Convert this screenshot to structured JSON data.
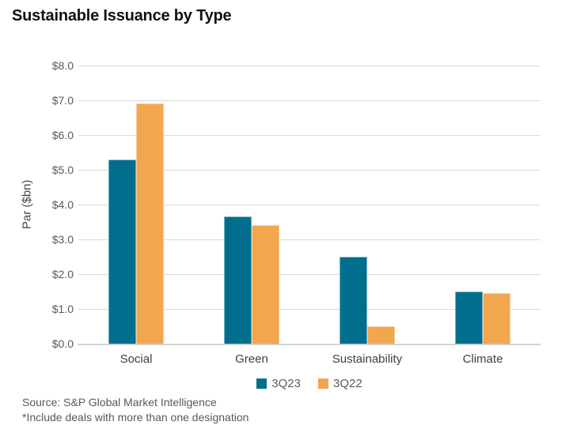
{
  "title": "Sustainable Issuance by Type",
  "chart_data": {
    "type": "bar",
    "categories": [
      "Social",
      "Green",
      "Sustainability",
      "Climate"
    ],
    "series": [
      {
        "name": "3Q23",
        "color": "#006E8C",
        "values": [
          5.3,
          3.65,
          2.5,
          1.5
        ]
      },
      {
        "name": "3Q22",
        "color": "#F2A64D",
        "values": [
          6.9,
          3.4,
          0.5,
          1.45
        ]
      }
    ],
    "title": "Sustainable Issuance by Type",
    "xlabel": "",
    "ylabel": "Par ($bn)",
    "ylim": [
      0,
      8
    ],
    "ytick_labels": [
      "$0.0",
      "$1.0",
      "$2.0",
      "$3.0",
      "$4.0",
      "$5.0",
      "$6.0",
      "$7.0",
      "$8.0"
    ],
    "grid": true,
    "legend_position": "bottom",
    "gridline_color": "#d9d9d9"
  },
  "footer": {
    "source": "Source: S&P Global Market Intelligence",
    "note": "*Include deals with more than one designation"
  }
}
